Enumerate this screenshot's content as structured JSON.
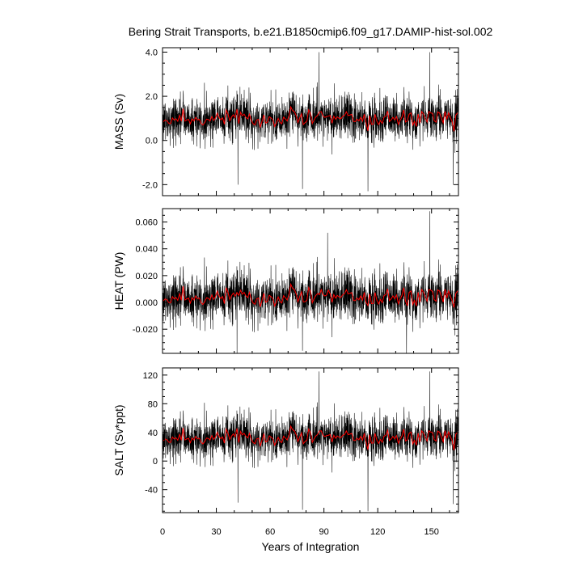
{
  "chart_data": {
    "title": "Bering Strait Transports, b.e21.B1850cmip6.f09_g17.DAMIP-hist-sol.002",
    "xlabel": "Years of Integration",
    "xlim": [
      0,
      165
    ],
    "xticks": [
      0,
      30,
      60,
      90,
      120,
      150
    ],
    "series_colors": {
      "monthly": "#000000",
      "annual_mean": "#ff0000"
    },
    "panels": [
      {
        "key": "mass",
        "type": "line",
        "ylabel": "MASS (Sv)",
        "ylim": [
          -2.5,
          4.2
        ],
        "yticks": [
          -2.0,
          0.0,
          2.0,
          4.0
        ],
        "ytick_decimals": 1,
        "mean": 1.0,
        "std": 0.6,
        "peaks": [
          [
            87.2,
            4.0
          ],
          [
            149.0,
            4.0
          ],
          [
            114.5,
            -2.3
          ],
          [
            78.0,
            -2.2
          ],
          [
            162.0,
            -2.0
          ],
          [
            42.0,
            -2.0
          ]
        ]
      },
      {
        "key": "heat",
        "type": "line",
        "ylabel": "HEAT (PW)",
        "ylim": [
          -0.038,
          0.07
        ],
        "yticks": [
          -0.02,
          0.0,
          0.02,
          0.04,
          0.06
        ],
        "ytick_decimals": 3,
        "mean": 0.004,
        "std": 0.011,
        "peaks": [
          [
            149.0,
            0.068
          ],
          [
            41.5,
            -0.038
          ],
          [
            136.0,
            -0.038
          ],
          [
            78.0,
            -0.036
          ],
          [
            92.0,
            0.052
          ]
        ]
      },
      {
        "key": "salt",
        "type": "line",
        "ylabel": "SALT (Sv*ppt)",
        "ylim": [
          -72,
          130
        ],
        "yticks": [
          -40,
          0,
          40,
          80,
          120
        ],
        "ytick_decimals": 0,
        "mean": 33,
        "std": 18,
        "peaks": [
          [
            87.2,
            125
          ],
          [
            149.0,
            125
          ],
          [
            114.5,
            -70
          ],
          [
            78.0,
            -68
          ],
          [
            162.0,
            -60
          ],
          [
            42.0,
            -58
          ]
        ]
      }
    ]
  }
}
